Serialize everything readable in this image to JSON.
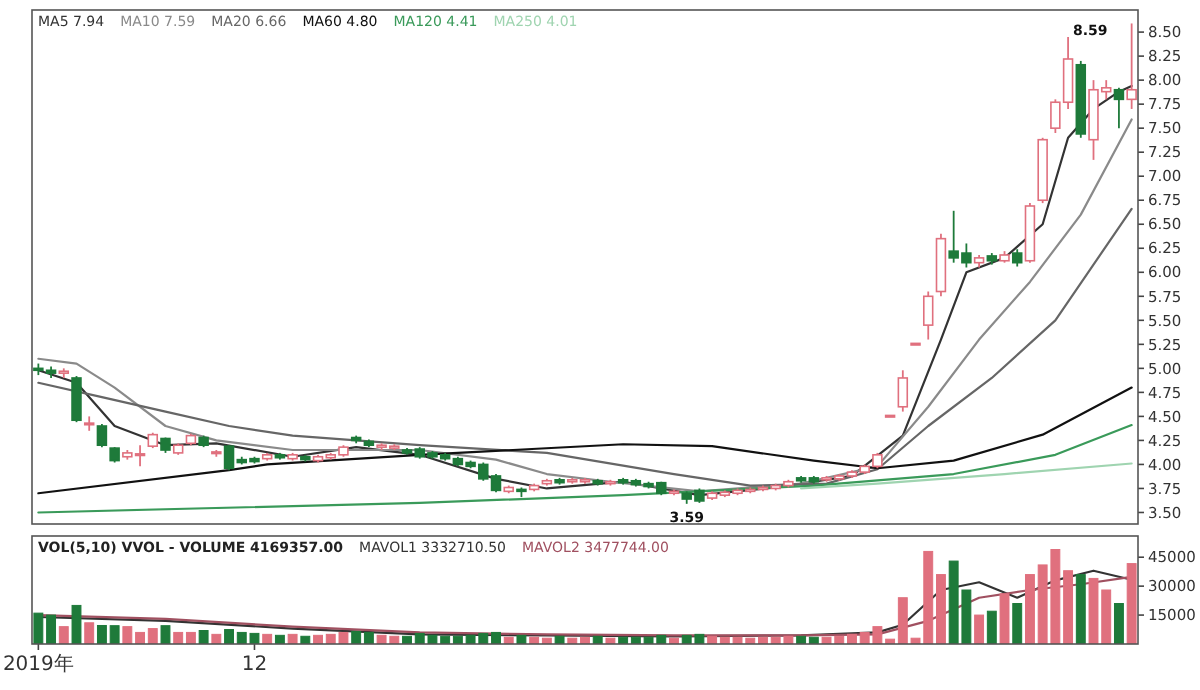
{
  "chart_data": [
    {
      "type": "candlestick",
      "categories": [
        null,
        null,
        null,
        null,
        null,
        null,
        null,
        null,
        null,
        null,
        null,
        null,
        null,
        null,
        null,
        null,
        null,
        null,
        null,
        null,
        null,
        null,
        null,
        null,
        null,
        null,
        null,
        null,
        null,
        null,
        null,
        null,
        null,
        null,
        null,
        null,
        null,
        null,
        null,
        null,
        null,
        null,
        null,
        null,
        null,
        null,
        null,
        null,
        null,
        null,
        null,
        null,
        null,
        null,
        null,
        null,
        null,
        null,
        null,
        null,
        null,
        null,
        null,
        null,
        null,
        null,
        null,
        null,
        null,
        null,
        null,
        null,
        null,
        null,
        null,
        null,
        null,
        null,
        null,
        null,
        null,
        null,
        null,
        null,
        null,
        null,
        null
      ],
      "ohlc": [
        [
          5.0,
          5.05,
          4.93,
          4.98
        ],
        [
          4.98,
          5.02,
          4.9,
          4.95
        ],
        [
          4.95,
          5.0,
          4.9,
          4.97
        ],
        [
          4.9,
          4.92,
          4.44,
          4.46
        ],
        [
          4.42,
          4.5,
          4.35,
          4.43
        ],
        [
          4.4,
          4.42,
          4.18,
          4.2
        ],
        [
          4.17,
          4.18,
          4.02,
          4.04
        ],
        [
          4.08,
          4.15,
          4.05,
          4.12
        ],
        [
          4.1,
          4.2,
          3.98,
          4.11
        ],
        [
          4.19,
          4.33,
          4.17,
          4.31
        ],
        [
          4.27,
          4.28,
          4.12,
          4.15
        ],
        [
          4.12,
          4.22,
          4.1,
          4.2
        ],
        [
          4.22,
          4.32,
          4.2,
          4.3
        ],
        [
          4.28,
          4.3,
          4.18,
          4.2
        ],
        [
          4.12,
          4.15,
          4.08,
          4.13
        ],
        [
          4.19,
          4.2,
          3.94,
          3.96
        ],
        [
          4.05,
          4.08,
          4.0,
          4.02
        ],
        [
          4.06,
          4.08,
          4.01,
          4.03
        ],
        [
          4.06,
          4.12,
          4.04,
          4.1
        ],
        [
          4.1,
          4.12,
          4.05,
          4.07
        ],
        [
          4.06,
          4.12,
          4.04,
          4.1
        ],
        [
          4.08,
          4.1,
          4.03,
          4.05
        ],
        [
          4.04,
          4.1,
          4.02,
          4.08
        ],
        [
          4.07,
          4.12,
          4.05,
          4.1
        ],
        [
          4.1,
          4.2,
          4.08,
          4.18
        ],
        [
          4.28,
          4.3,
          4.22,
          4.25
        ],
        [
          4.24,
          4.26,
          4.18,
          4.2
        ],
        [
          4.18,
          4.22,
          4.15,
          4.2
        ],
        [
          4.17,
          4.21,
          4.15,
          4.19
        ],
        [
          4.15,
          4.17,
          4.1,
          4.12
        ],
        [
          4.16,
          4.18,
          4.06,
          4.08
        ],
        [
          4.12,
          4.14,
          4.06,
          4.08
        ],
        [
          4.1,
          4.12,
          4.04,
          4.06
        ],
        [
          4.06,
          4.08,
          3.98,
          4.0
        ],
        [
          4.02,
          4.04,
          3.96,
          3.98
        ],
        [
          4.0,
          4.02,
          3.83,
          3.85
        ],
        [
          3.88,
          3.9,
          3.71,
          3.73
        ],
        [
          3.72,
          3.78,
          3.7,
          3.76
        ],
        [
          3.74,
          3.76,
          3.66,
          3.72
        ],
        [
          3.74,
          3.8,
          3.72,
          3.78
        ],
        [
          3.8,
          3.85,
          3.78,
          3.83
        ],
        [
          3.84,
          3.86,
          3.79,
          3.81
        ],
        [
          3.82,
          3.86,
          3.8,
          3.84
        ],
        [
          3.82,
          3.86,
          3.8,
          3.84
        ],
        [
          3.83,
          3.85,
          3.78,
          3.8
        ],
        [
          3.8,
          3.84,
          3.78,
          3.82
        ],
        [
          3.84,
          3.86,
          3.79,
          3.81
        ],
        [
          3.83,
          3.85,
          3.77,
          3.79
        ],
        [
          3.8,
          3.82,
          3.75,
          3.77
        ],
        [
          3.81,
          3.82,
          3.68,
          3.7
        ],
        [
          3.7,
          3.74,
          3.68,
          3.72
        ],
        [
          3.7,
          3.72,
          3.59,
          3.64
        ],
        [
          3.73,
          3.75,
          3.6,
          3.62
        ],
        [
          3.65,
          3.72,
          3.63,
          3.7
        ],
        [
          3.68,
          3.73,
          3.66,
          3.71
        ],
        [
          3.7,
          3.75,
          3.68,
          3.73
        ],
        [
          3.72,
          3.76,
          3.7,
          3.74
        ],
        [
          3.74,
          3.78,
          3.72,
          3.76
        ],
        [
          3.75,
          3.8,
          3.73,
          3.78
        ],
        [
          3.78,
          3.84,
          3.76,
          3.82
        ],
        [
          3.86,
          3.88,
          3.81,
          3.83
        ],
        [
          3.86,
          3.88,
          3.8,
          3.82
        ],
        [
          3.84,
          3.88,
          3.82,
          3.86
        ],
        [
          3.85,
          3.9,
          3.83,
          3.88
        ],
        [
          3.88,
          3.94,
          3.86,
          3.92
        ],
        [
          3.92,
          4.0,
          3.9,
          3.98
        ],
        [
          3.98,
          4.12,
          3.96,
          4.1
        ],
        [
          4.5,
          4.51,
          4.5,
          4.51
        ],
        [
          4.6,
          4.98,
          4.55,
          4.9
        ],
        [
          5.25,
          5.26,
          5.25,
          5.26
        ],
        [
          5.45,
          5.8,
          5.3,
          5.75
        ],
        [
          5.8,
          6.4,
          5.75,
          6.35
        ],
        [
          6.22,
          6.64,
          6.1,
          6.15
        ],
        [
          6.2,
          6.3,
          6.05,
          6.1
        ],
        [
          6.1,
          6.18,
          6.05,
          6.15
        ],
        [
          6.17,
          6.2,
          6.08,
          6.12
        ],
        [
          6.12,
          6.22,
          6.1,
          6.18
        ],
        [
          6.2,
          6.24,
          6.06,
          6.1
        ],
        [
          6.12,
          6.72,
          6.1,
          6.69
        ],
        [
          6.75,
          7.4,
          6.72,
          7.38
        ],
        [
          7.5,
          7.8,
          7.45,
          7.77
        ],
        [
          7.77,
          8.45,
          7.7,
          8.22
        ],
        [
          8.16,
          8.2,
          7.4,
          7.44
        ],
        [
          7.38,
          8.0,
          7.17,
          7.9
        ],
        [
          7.88,
          8.0,
          7.8,
          7.92
        ],
        [
          7.9,
          7.92,
          7.5,
          7.8
        ],
        [
          7.8,
          8.59,
          7.7,
          7.9
        ]
      ],
      "series": [
        {
          "type": "line",
          "name": "MA5 7.94",
          "color": "#333333",
          "values": [
            4.98,
            null,
            null,
            4.85,
            null,
            null,
            4.4,
            null,
            null,
            null,
            4.2,
            null,
            null,
            null,
            4.22,
            null,
            null,
            null,
            null,
            null,
            4.08,
            null,
            null,
            null,
            null,
            4.18,
            null,
            null,
            null,
            null,
            4.1,
            null,
            null,
            null,
            null,
            null,
            3.85,
            null,
            null,
            null,
            3.75,
            null,
            null,
            null,
            null,
            null,
            3.82,
            null,
            null,
            null,
            null,
            null,
            3.68,
            null,
            null,
            null,
            null,
            null,
            3.76,
            null,
            null,
            null,
            null,
            null,
            3.88,
            null,
            null,
            null,
            4.3,
            null,
            null,
            5.3,
            null,
            6.0,
            null,
            null,
            6.15,
            null,
            null,
            6.5,
            null,
            7.4,
            null,
            7.7,
            null,
            7.88,
            7.94
          ]
        },
        {
          "type": "line",
          "name": "MA10 7.59",
          "color": "#8a8a8a",
          "values": [
            5.1,
            null,
            null,
            5.05,
            null,
            null,
            4.8,
            null,
            null,
            null,
            4.4,
            null,
            null,
            null,
            4.25,
            null,
            null,
            null,
            null,
            null,
            4.15,
            null,
            null,
            null,
            null,
            null,
            null,
            null,
            null,
            null,
            4.15,
            null,
            null,
            null,
            null,
            null,
            4.05,
            null,
            null,
            null,
            3.9,
            null,
            null,
            null,
            null,
            3.82,
            null,
            null,
            null,
            null,
            null,
            null,
            3.72,
            null,
            null,
            null,
            null,
            null,
            null,
            null,
            3.8,
            null,
            null,
            null,
            null,
            null,
            3.98,
            null,
            null,
            null,
            4.6,
            null,
            null,
            null,
            5.3,
            null,
            null,
            null,
            5.9,
            null,
            null,
            null,
            6.6,
            null,
            null,
            null,
            7.59
          ]
        },
        {
          "type": "line",
          "name": "MA20 6.66",
          "color": "#666666",
          "values": [
            4.85,
            null,
            null,
            null,
            null,
            4.7,
            null,
            null,
            null,
            null,
            4.55,
            null,
            null,
            null,
            null,
            4.4,
            null,
            null,
            null,
            null,
            4.3,
            null,
            null,
            null,
            null,
            null,
            null,
            null,
            null,
            null,
            4.2,
            null,
            null,
            null,
            null,
            null,
            null,
            null,
            null,
            null,
            4.12,
            null,
            null,
            null,
            null,
            null,
            null,
            null,
            null,
            null,
            3.9,
            null,
            null,
            null,
            null,
            null,
            3.78,
            null,
            null,
            null,
            null,
            null,
            3.8,
            null,
            null,
            null,
            3.95,
            null,
            null,
            null,
            4.4,
            null,
            null,
            null,
            null,
            4.9,
            null,
            null,
            null,
            null,
            5.5,
            null,
            null,
            null,
            null,
            null,
            6.66
          ]
        },
        {
          "type": "line",
          "name": "MA60 4.80",
          "color": "#111111",
          "values": [
            3.7,
            null,
            null,
            null,
            null,
            null,
            null,
            null,
            null,
            null,
            null,
            null,
            null,
            null,
            null,
            3.94,
            null,
            null,
            4.0,
            null,
            null,
            null,
            null,
            null,
            null,
            null,
            null,
            null,
            null,
            null,
            4.1,
            null,
            null,
            null,
            null,
            null,
            null,
            null,
            null,
            null,
            null,
            null,
            null,
            null,
            null,
            null,
            4.21,
            null,
            null,
            null,
            null,
            null,
            null,
            4.19,
            null,
            null,
            null,
            null,
            null,
            null,
            null,
            4.04,
            null,
            null,
            null,
            null,
            3.96,
            null,
            null,
            null,
            null,
            null,
            4.04,
            null,
            null,
            null,
            null,
            null,
            null,
            4.31,
            null,
            null,
            null,
            null,
            null,
            null,
            4.8
          ]
        },
        {
          "type": "line",
          "name": "MA120 4.41",
          "color": "#3a9a5a",
          "values": [
            3.5,
            null,
            null,
            null,
            null,
            null,
            null,
            null,
            null,
            null,
            null,
            null,
            null,
            null,
            null,
            null,
            null,
            null,
            null,
            null,
            null,
            null,
            null,
            null,
            null,
            null,
            null,
            null,
            null,
            null,
            3.6,
            null,
            null,
            null,
            null,
            null,
            null,
            null,
            null,
            null,
            null,
            null,
            null,
            null,
            null,
            null,
            3.68,
            null,
            null,
            null,
            null,
            null,
            null,
            null,
            null,
            null,
            null,
            null,
            null,
            null,
            null,
            3.78,
            null,
            null,
            null,
            null,
            null,
            null,
            null,
            null,
            null,
            null,
            3.9,
            null,
            null,
            null,
            null,
            null,
            null,
            null,
            4.1,
            null,
            null,
            null,
            null,
            null,
            4.41
          ]
        },
        {
          "type": "line",
          "name": "MA250 4.01",
          "color": "#9fd4b0",
          "values": [
            null,
            null,
            null,
            null,
            null,
            null,
            null,
            null,
            null,
            null,
            null,
            null,
            null,
            null,
            null,
            null,
            null,
            null,
            null,
            null,
            null,
            null,
            null,
            null,
            null,
            null,
            null,
            null,
            null,
            null,
            null,
            null,
            null,
            null,
            null,
            null,
            null,
            null,
            null,
            null,
            null,
            null,
            null,
            null,
            null,
            null,
            null,
            null,
            null,
            null,
            null,
            null,
            null,
            null,
            null,
            null,
            null,
            null,
            null,
            null,
            3.75,
            null,
            null,
            null,
            null,
            null,
            3.8,
            null,
            null,
            null,
            null,
            null,
            null,
            null,
            null,
            null,
            3.9,
            null,
            null,
            null,
            null,
            null,
            null,
            null,
            null,
            null,
            4.01
          ]
        }
      ],
      "ylim": [
        3.38,
        8.73
      ],
      "yticks": [
        {
          "value": 3.5,
          "label": "3.50"
        },
        {
          "value": 3.75,
          "label": "3.75"
        },
        {
          "value": 4.0,
          "label": "4.00"
        },
        {
          "value": 4.25,
          "label": "4.25"
        },
        {
          "value": 4.5,
          "label": "4.50"
        },
        {
          "value": 4.75,
          "label": "4.75"
        },
        {
          "value": 5.0,
          "label": "5.00"
        },
        {
          "value": 5.25,
          "label": "5.25"
        },
        {
          "value": 5.5,
          "label": "5.50"
        },
        {
          "value": 5.75,
          "label": "5.75"
        },
        {
          "value": 6.0,
          "label": "6.00"
        },
        {
          "value": 6.25,
          "label": "6.25"
        },
        {
          "value": 6.5,
          "label": "6.50"
        },
        {
          "value": 6.75,
          "label": "6.75"
        },
        {
          "value": 7.0,
          "label": "7.00"
        },
        {
          "value": 7.25,
          "label": "7.25"
        },
        {
          "value": 7.5,
          "label": "7.50"
        },
        {
          "value": 7.75,
          "label": "7.75"
        },
        {
          "value": 8.0,
          "label": "8.00"
        },
        {
          "value": 8.25,
          "label": "8.25"
        },
        {
          "value": 8.5,
          "label": "8.50"
        }
      ],
      "tick_labels": "y",
      "legend": "top left",
      "annotations": [
        "8.59",
        "3.59"
      ]
    },
    {
      "type": "bar",
      "title": "VOL(5,10) VVOL - VOLUME 4169357.00",
      "legend": "top left",
      "categories": [
        "2019年",
        null,
        null,
        null,
        null,
        null,
        null,
        null,
        null,
        null,
        null,
        null,
        null,
        null,
        null,
        null,
        null,
        "12",
        null,
        null,
        null,
        null,
        null,
        null,
        null,
        null,
        null,
        null,
        null,
        null,
        null,
        null,
        null,
        null,
        null,
        null,
        null,
        null,
        null,
        null,
        null,
        null,
        null,
        null,
        null,
        null,
        null,
        null,
        null,
        null,
        null,
        null,
        null,
        null,
        null,
        null,
        null,
        null,
        null,
        null,
        null,
        null,
        null,
        null,
        null,
        null,
        null,
        null,
        null,
        null,
        null,
        null,
        null,
        null,
        null,
        null,
        null,
        null,
        null,
        null,
        null,
        null,
        null,
        null,
        null,
        null,
        null
      ],
      "values": [
        16000,
        15000,
        9000,
        20000,
        11000,
        9600,
        9500,
        9000,
        6000,
        8000,
        9500,
        6000,
        6000,
        7000,
        5000,
        7500,
        6000,
        5500,
        5000,
        4500,
        5000,
        4000,
        4500,
        5000,
        6000,
        6500,
        6000,
        4500,
        4000,
        4000,
        5500,
        4500,
        4000,
        4000,
        4500,
        5500,
        6000,
        3500,
        4500,
        3500,
        3000,
        4000,
        3000,
        3500,
        4000,
        3000,
        3500,
        3500,
        3500,
        4500,
        3000,
        4500,
        5000,
        4000,
        3500,
        3500,
        3000,
        3500,
        3500,
        4000,
        4000,
        3500,
        3500,
        4000,
        5000,
        6000,
        9000,
        2500,
        24000,
        3000,
        48000,
        36000,
        43000,
        28000,
        15000,
        17000,
        26000,
        21000,
        36000,
        41000,
        49000,
        38000,
        36000,
        34000,
        28000,
        21000,
        41694
      ],
      "colors": [
        "#1e7a3a",
        "#1e7a3a",
        "#e0707e",
        "#1e7a3a",
        "#e0707e",
        "#1e7a3a",
        "#1e7a3a",
        "#e0707e",
        "#e0707e",
        "#e0707e",
        "#1e7a3a",
        "#e0707e",
        "#e0707e",
        "#1e7a3a",
        "#e0707e",
        "#1e7a3a",
        "#1e7a3a",
        "#1e7a3a",
        "#e0707e",
        "#1e7a3a",
        "#e0707e",
        "#1e7a3a",
        "#e0707e",
        "#e0707e",
        "#e0707e",
        "#1e7a3a",
        "#1e7a3a",
        "#e0707e",
        "#e0707e",
        "#1e7a3a",
        "#1e7a3a",
        "#1e7a3a",
        "#1e7a3a",
        "#1e7a3a",
        "#1e7a3a",
        "#1e7a3a",
        "#1e7a3a",
        "#e0707e",
        "#1e7a3a",
        "#e0707e",
        "#e0707e",
        "#1e7a3a",
        "#e0707e",
        "#e0707e",
        "#1e7a3a",
        "#e0707e",
        "#1e7a3a",
        "#1e7a3a",
        "#1e7a3a",
        "#1e7a3a",
        "#e0707e",
        "#1e7a3a",
        "#1e7a3a",
        "#e0707e",
        "#e0707e",
        "#e0707e",
        "#e0707e",
        "#e0707e",
        "#e0707e",
        "#e0707e",
        "#1e7a3a",
        "#1e7a3a",
        "#e0707e",
        "#e0707e",
        "#e0707e",
        "#e0707e",
        "#e0707e",
        "#e0707e",
        "#e0707e",
        "#e0707e",
        "#e0707e",
        "#e0707e",
        "#1e7a3a",
        "#1e7a3a",
        "#e0707e",
        "#1e7a3a",
        "#e0707e",
        "#1e7a3a",
        "#e0707e",
        "#e0707e",
        "#e0707e",
        "#e0707e",
        "#1e7a3a",
        "#e0707e",
        "#e0707e",
        "#1e7a3a",
        "#e0707e"
      ],
      "series": [
        {
          "type": "line",
          "name": "MAVOL1 3332710.50",
          "color": "#333333",
          "values": [
            14000,
            null,
            null,
            null,
            null,
            null,
            null,
            null,
            null,
            null,
            12000,
            null,
            null,
            null,
            null,
            null,
            null,
            null,
            null,
            null,
            8000,
            null,
            null,
            null,
            null,
            null,
            null,
            null,
            null,
            null,
            5000,
            null,
            null,
            null,
            null,
            null,
            null,
            null,
            null,
            null,
            4500,
            null,
            null,
            null,
            null,
            null,
            null,
            null,
            null,
            null,
            4000,
            null,
            null,
            null,
            null,
            null,
            null,
            null,
            null,
            null,
            4500,
            null,
            null,
            null,
            null,
            null,
            6000,
            null,
            10000,
            null,
            null,
            28000,
            null,
            null,
            32000,
            null,
            null,
            24000,
            null,
            null,
            33000,
            null,
            null,
            38000,
            null,
            null,
            33327
          ]
        },
        {
          "type": "line",
          "name": "MAVOL2 3477744.00",
          "color": "#a05060",
          "values": [
            15000,
            null,
            null,
            null,
            null,
            null,
            null,
            null,
            null,
            null,
            13000,
            null,
            null,
            null,
            null,
            null,
            null,
            null,
            null,
            null,
            9000,
            null,
            null,
            null,
            null,
            null,
            null,
            null,
            null,
            null,
            6000,
            null,
            null,
            null,
            null,
            null,
            null,
            null,
            null,
            null,
            5000,
            null,
            null,
            null,
            null,
            null,
            null,
            null,
            null,
            null,
            4500,
            null,
            null,
            null,
            null,
            null,
            null,
            null,
            null,
            null,
            4500,
            null,
            null,
            null,
            null,
            null,
            5000,
            null,
            null,
            null,
            12000,
            null,
            null,
            null,
            24000,
            null,
            null,
            null,
            28000,
            null,
            null,
            null,
            31000,
            null,
            null,
            null,
            34777
          ]
        }
      ],
      "ylim": [
        0,
        56000
      ],
      "yticks": [
        15000,
        30000,
        45000
      ]
    }
  ]
}
